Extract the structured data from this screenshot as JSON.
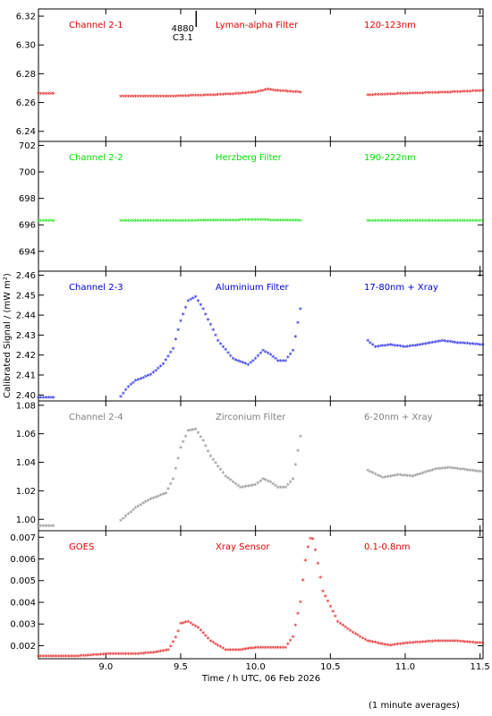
{
  "ylabel": "Calibrated Signal / (mW m²)",
  "xlabel": "Time / h UTC, 06 Feb 2026",
  "footnote": "(1 minute averages)",
  "xlim": [
    8.55,
    11.52
  ],
  "xticks": [
    9.0,
    9.5,
    10.0,
    10.5,
    11.0,
    11.5
  ],
  "xtick_labels": [
    "9.0",
    "9.5",
    "10.0",
    "10.5",
    "11.0",
    "11.5"
  ],
  "flare_marker": {
    "x": 9.52,
    "label_top": "4880",
    "label_bottom": "C3.1"
  },
  "chart_data": [
    {
      "type": "scatter",
      "color": "#e00000",
      "channel": "Channel 2-1",
      "filter": "Lyman-alpha Filter",
      "band": "120-123nm",
      "ylim": [
        6.233,
        6.325
      ],
      "yticks": [
        "6.24",
        "6.26",
        "6.28",
        "6.30",
        "6.32"
      ],
      "series": [
        {
          "x": [
            8.55,
            8.65
          ],
          "y": [
            6.266,
            6.266
          ]
        },
        {
          "x": [
            9.1,
            9.4,
            9.7,
            9.9,
            10.0,
            10.08,
            10.15,
            10.3
          ],
          "y": [
            6.264,
            6.264,
            6.265,
            6.266,
            6.267,
            6.269,
            6.268,
            6.267
          ]
        },
        {
          "x": [
            10.75,
            11.0,
            11.3,
            11.52
          ],
          "y": [
            6.265,
            6.266,
            6.267,
            6.268
          ]
        }
      ]
    },
    {
      "type": "scatter",
      "color": "#00e000",
      "channel": "Channel 2-2",
      "filter": "Herzberg Filter",
      "band": "190-222nm",
      "ylim": [
        692.5,
        702.3
      ],
      "yticks": [
        "694",
        "696",
        "698",
        "700",
        "702"
      ],
      "series": [
        {
          "x": [
            8.55,
            8.65
          ],
          "y": [
            696.3,
            696.3
          ]
        },
        {
          "x": [
            9.1,
            9.6,
            10.0,
            10.3
          ],
          "y": [
            696.3,
            696.3,
            696.35,
            696.3
          ]
        },
        {
          "x": [
            10.75,
            11.1,
            11.52
          ],
          "y": [
            696.3,
            696.3,
            696.3
          ]
        }
      ]
    },
    {
      "type": "scatter",
      "color": "#0000e0",
      "channel": "Channel 2-3",
      "filter": "Aluminium Filter",
      "band": "17-80nm + Xray",
      "ylim": [
        2.397,
        2.462
      ],
      "yticks": [
        "2.40",
        "2.41",
        "2.42",
        "2.43",
        "2.44",
        "2.45",
        "2.46"
      ],
      "series": [
        {
          "x": [
            8.55,
            8.65
          ],
          "y": [
            2.3985,
            2.3985
          ]
        },
        {
          "x": [
            9.1,
            9.15,
            9.2,
            9.3,
            9.38,
            9.45,
            9.5,
            9.55,
            9.6,
            9.65,
            9.7,
            9.75,
            9.85,
            9.95,
            10.0,
            10.05,
            10.1,
            10.15,
            10.2,
            10.25,
            10.3
          ],
          "y": [
            2.399,
            2.404,
            2.407,
            2.41,
            2.415,
            2.423,
            2.437,
            2.447,
            2.449,
            2.443,
            2.435,
            2.427,
            2.418,
            2.415,
            2.418,
            2.422,
            2.42,
            2.417,
            2.417,
            2.422,
            2.443
          ]
        },
        {
          "x": [
            10.75,
            10.8,
            10.9,
            11.0,
            11.1,
            11.25,
            11.35,
            11.52
          ],
          "y": [
            2.427,
            2.424,
            2.425,
            2.424,
            2.425,
            2.427,
            2.426,
            2.425
          ]
        }
      ]
    },
    {
      "type": "scatter",
      "color": "#808080",
      "channel": "Channel 2-4",
      "filter": "Zirconium Filter",
      "band": "6-20nm + Xray",
      "ylim": [
        0.992,
        1.083
      ],
      "yticks": [
        "1.00",
        "1.02",
        "1.04",
        "1.06",
        "1.08"
      ],
      "series": [
        {
          "x": [
            8.55,
            8.65
          ],
          "y": [
            0.995,
            0.995
          ]
        },
        {
          "x": [
            9.1,
            9.2,
            9.3,
            9.4,
            9.45,
            9.5,
            9.55,
            9.6,
            9.65,
            9.7,
            9.8,
            9.9,
            10.0,
            10.05,
            10.1,
            10.15,
            10.2,
            10.25,
            10.3
          ],
          "y": [
            0.999,
            1.008,
            1.014,
            1.018,
            1.028,
            1.05,
            1.062,
            1.063,
            1.055,
            1.044,
            1.03,
            1.022,
            1.024,
            1.028,
            1.026,
            1.022,
            1.022,
            1.028,
            1.058
          ]
        },
        {
          "x": [
            10.75,
            10.85,
            10.95,
            11.05,
            11.2,
            11.3,
            11.52
          ],
          "y": [
            1.034,
            1.029,
            1.031,
            1.03,
            1.035,
            1.036,
            1.033
          ]
        }
      ]
    },
    {
      "type": "scatter",
      "color": "#e00000",
      "channel": "GOES",
      "filter": "Xray Sensor",
      "band": "0.1-0.8nm",
      "ylim": [
        0.0014,
        0.0073
      ],
      "yticks": [
        "0.002",
        "0.003",
        "0.004",
        "0.005",
        "0.006",
        "0.007"
      ],
      "series": [
        {
          "x": [
            8.55,
            8.8,
            9.0,
            9.2,
            9.35,
            9.42,
            9.47,
            9.5,
            9.55,
            9.62,
            9.7,
            9.8,
            9.9,
            10.0,
            10.1,
            10.2,
            10.25,
            10.3,
            10.33,
            10.36,
            10.38,
            10.4,
            10.45,
            10.55,
            10.65,
            10.75,
            10.9,
            11.0,
            11.2,
            11.35,
            11.52
          ],
          "y": [
            0.0015,
            0.0015,
            0.0016,
            0.0016,
            0.0017,
            0.0018,
            0.0024,
            0.003,
            0.0031,
            0.0028,
            0.0022,
            0.0018,
            0.0018,
            0.0019,
            0.0019,
            0.0019,
            0.0024,
            0.004,
            0.0058,
            0.0069,
            0.007,
            0.0064,
            0.0045,
            0.0031,
            0.0026,
            0.0022,
            0.002,
            0.0021,
            0.0022,
            0.0022,
            0.0021
          ]
        }
      ]
    }
  ]
}
